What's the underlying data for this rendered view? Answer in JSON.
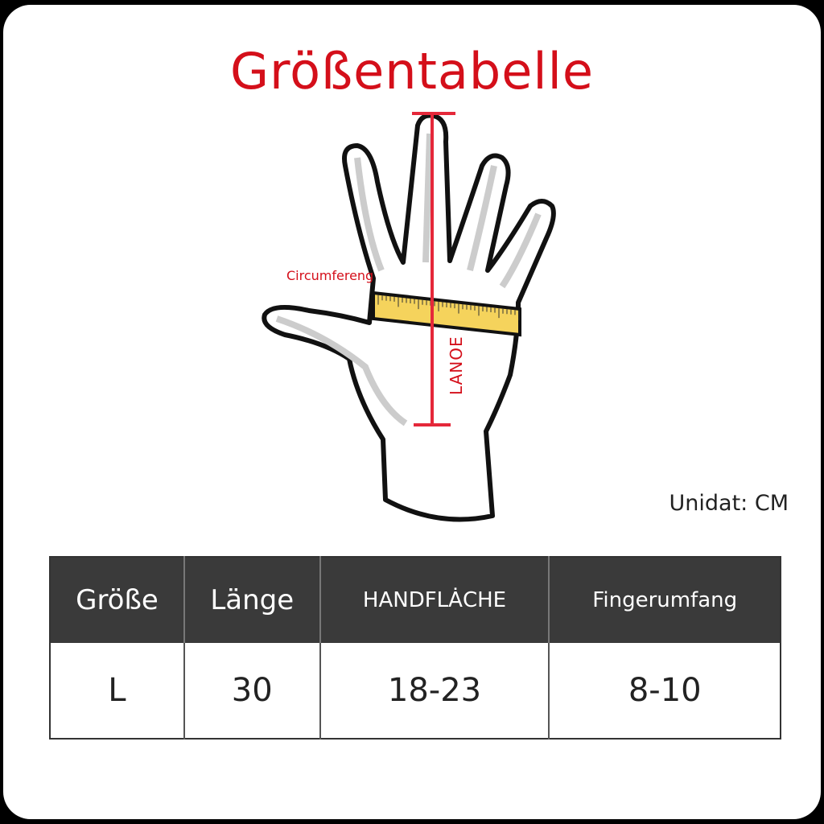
{
  "title": "Größentabelle",
  "diagram": {
    "circumference_label": "Circumfereng",
    "length_label": "LANOE",
    "accent_color": "#d40f1a",
    "tape_color": "#f5d35c"
  },
  "unit_label": "Unidat: CM",
  "table": {
    "headers": [
      "Größe",
      "Länge",
      "HANDFLȦCHE",
      "Fingerumfang"
    ],
    "rows": [
      [
        "L",
        "30",
        "18-23",
        "8-10"
      ]
    ]
  }
}
